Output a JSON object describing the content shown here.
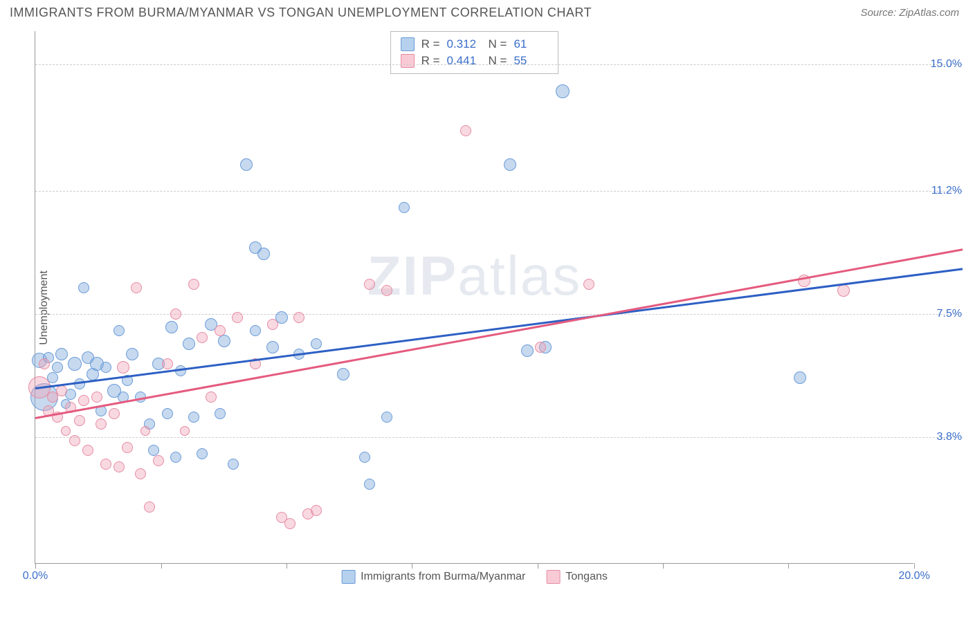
{
  "title": "IMMIGRANTS FROM BURMA/MYANMAR VS TONGAN UNEMPLOYMENT CORRELATION CHART",
  "source": "Source: ZipAtlas.com",
  "watermark": {
    "bold": "ZIP",
    "light": "atlas"
  },
  "y_axis_label": "Unemployment",
  "chart": {
    "type": "scatter",
    "xlim": [
      0,
      20
    ],
    "ylim": [
      0,
      16
    ],
    "x_ticks": [
      0,
      2.86,
      5.71,
      8.57,
      11.43,
      14.29,
      17.14,
      20
    ],
    "x_tick_labels": {
      "0": "0.0%",
      "20": "20.0%"
    },
    "y_ticks": [
      3.8,
      7.5,
      11.2,
      15.0
    ],
    "y_tick_labels": [
      "3.8%",
      "7.5%",
      "11.2%",
      "15.0%"
    ],
    "grid_color": "#cccccc",
    "axis_color": "#999999",
    "background_color": "#ffffff",
    "series": [
      {
        "name": "Immigrants from Burma/Myanmar",
        "short": "burma",
        "fill": "rgba(128,170,220,0.45)",
        "stroke": "#6a9bd8",
        "swatch_fill": "rgba(150,190,230,0.7)",
        "swatch_stroke": "#6a9bd8",
        "trend_color": "#2d5fc4",
        "r_value": "0.312",
        "n_value": "61",
        "trend": {
          "x1": 0,
          "y1": 5.3,
          "x2": 20,
          "y2": 8.7
        },
        "points": [
          {
            "x": 0.1,
            "y": 6.1,
            "r": 11
          },
          {
            "x": 0.2,
            "y": 5.0,
            "r": 20
          },
          {
            "x": 0.3,
            "y": 6.2,
            "r": 8
          },
          {
            "x": 0.4,
            "y": 5.6,
            "r": 8
          },
          {
            "x": 0.5,
            "y": 5.9,
            "r": 8
          },
          {
            "x": 0.6,
            "y": 6.3,
            "r": 9
          },
          {
            "x": 0.7,
            "y": 4.8,
            "r": 7
          },
          {
            "x": 0.8,
            "y": 5.1,
            "r": 8
          },
          {
            "x": 0.9,
            "y": 6.0,
            "r": 10
          },
          {
            "x": 1.0,
            "y": 5.4,
            "r": 8
          },
          {
            "x": 1.1,
            "y": 8.3,
            "r": 8
          },
          {
            "x": 1.2,
            "y": 6.2,
            "r": 9
          },
          {
            "x": 1.3,
            "y": 5.7,
            "r": 9
          },
          {
            "x": 1.4,
            "y": 6.0,
            "r": 10
          },
          {
            "x": 1.5,
            "y": 4.6,
            "r": 8
          },
          {
            "x": 1.6,
            "y": 5.9,
            "r": 8
          },
          {
            "x": 1.8,
            "y": 5.2,
            "r": 10
          },
          {
            "x": 1.9,
            "y": 7.0,
            "r": 8
          },
          {
            "x": 2.0,
            "y": 5.0,
            "r": 8
          },
          {
            "x": 2.1,
            "y": 5.5,
            "r": 8
          },
          {
            "x": 2.2,
            "y": 6.3,
            "r": 9
          },
          {
            "x": 2.4,
            "y": 5.0,
            "r": 8
          },
          {
            "x": 2.6,
            "y": 4.2,
            "r": 8
          },
          {
            "x": 2.7,
            "y": 3.4,
            "r": 8
          },
          {
            "x": 2.8,
            "y": 6.0,
            "r": 9
          },
          {
            "x": 3.0,
            "y": 4.5,
            "r": 8
          },
          {
            "x": 3.1,
            "y": 7.1,
            "r": 9
          },
          {
            "x": 3.2,
            "y": 3.2,
            "r": 8
          },
          {
            "x": 3.3,
            "y": 5.8,
            "r": 8
          },
          {
            "x": 3.5,
            "y": 6.6,
            "r": 9
          },
          {
            "x": 3.6,
            "y": 4.4,
            "r": 8
          },
          {
            "x": 3.8,
            "y": 3.3,
            "r": 8
          },
          {
            "x": 4.0,
            "y": 7.2,
            "r": 9
          },
          {
            "x": 4.2,
            "y": 4.5,
            "r": 8
          },
          {
            "x": 4.3,
            "y": 6.7,
            "r": 9
          },
          {
            "x": 4.5,
            "y": 3.0,
            "r": 8
          },
          {
            "x": 4.8,
            "y": 12.0,
            "r": 9
          },
          {
            "x": 5.0,
            "y": 7.0,
            "r": 8
          },
          {
            "x": 5.0,
            "y": 9.5,
            "r": 9
          },
          {
            "x": 5.2,
            "y": 9.3,
            "r": 9
          },
          {
            "x": 5.4,
            "y": 6.5,
            "r": 9
          },
          {
            "x": 5.6,
            "y": 7.4,
            "r": 9
          },
          {
            "x": 6.0,
            "y": 6.3,
            "r": 8
          },
          {
            "x": 6.4,
            "y": 6.6,
            "r": 8
          },
          {
            "x": 7.0,
            "y": 5.7,
            "r": 9
          },
          {
            "x": 7.5,
            "y": 3.2,
            "r": 8
          },
          {
            "x": 7.6,
            "y": 2.4,
            "r": 8
          },
          {
            "x": 8.0,
            "y": 4.4,
            "r": 8
          },
          {
            "x": 8.4,
            "y": 10.7,
            "r": 8
          },
          {
            "x": 10.8,
            "y": 12.0,
            "r": 9
          },
          {
            "x": 11.2,
            "y": 6.4,
            "r": 9
          },
          {
            "x": 11.6,
            "y": 6.5,
            "r": 9
          },
          {
            "x": 12.0,
            "y": 14.2,
            "r": 10
          },
          {
            "x": 17.4,
            "y": 5.6,
            "r": 9
          }
        ]
      },
      {
        "name": "Tongans",
        "short": "tongan",
        "fill": "rgba(240,160,180,0.40)",
        "stroke": "#e58ba3",
        "swatch_fill": "rgba(245,180,195,0.7)",
        "swatch_stroke": "#e58ba3",
        "trend_color": "#e55a7e",
        "r_value": "0.441",
        "n_value": "55",
        "trend": {
          "x1": 0,
          "y1": 4.4,
          "x2": 20,
          "y2": 9.2
        },
        "points": [
          {
            "x": 0.1,
            "y": 5.3,
            "r": 16
          },
          {
            "x": 0.2,
            "y": 6.0,
            "r": 8
          },
          {
            "x": 0.3,
            "y": 4.6,
            "r": 8
          },
          {
            "x": 0.4,
            "y": 5.0,
            "r": 8
          },
          {
            "x": 0.5,
            "y": 4.4,
            "r": 8
          },
          {
            "x": 0.6,
            "y": 5.2,
            "r": 8
          },
          {
            "x": 0.7,
            "y": 4.0,
            "r": 7
          },
          {
            "x": 0.8,
            "y": 4.7,
            "r": 8
          },
          {
            "x": 0.9,
            "y": 3.7,
            "r": 8
          },
          {
            "x": 1.0,
            "y": 4.3,
            "r": 8
          },
          {
            "x": 1.1,
            "y": 4.9,
            "r": 8
          },
          {
            "x": 1.2,
            "y": 3.4,
            "r": 8
          },
          {
            "x": 1.4,
            "y": 5.0,
            "r": 8
          },
          {
            "x": 1.5,
            "y": 4.2,
            "r": 8
          },
          {
            "x": 1.6,
            "y": 3.0,
            "r": 8
          },
          {
            "x": 1.8,
            "y": 4.5,
            "r": 8
          },
          {
            "x": 1.9,
            "y": 2.9,
            "r": 8
          },
          {
            "x": 2.0,
            "y": 5.9,
            "r": 9
          },
          {
            "x": 2.1,
            "y": 3.5,
            "r": 8
          },
          {
            "x": 2.3,
            "y": 8.3,
            "r": 8
          },
          {
            "x": 2.4,
            "y": 2.7,
            "r": 8
          },
          {
            "x": 2.5,
            "y": 4.0,
            "r": 7
          },
          {
            "x": 2.6,
            "y": 1.7,
            "r": 8
          },
          {
            "x": 2.8,
            "y": 3.1,
            "r": 8
          },
          {
            "x": 3.0,
            "y": 6.0,
            "r": 8
          },
          {
            "x": 3.2,
            "y": 7.5,
            "r": 8
          },
          {
            "x": 3.4,
            "y": 4.0,
            "r": 7
          },
          {
            "x": 3.6,
            "y": 8.4,
            "r": 8
          },
          {
            "x": 3.8,
            "y": 6.8,
            "r": 8
          },
          {
            "x": 4.0,
            "y": 5.0,
            "r": 8
          },
          {
            "x": 4.2,
            "y": 7.0,
            "r": 8
          },
          {
            "x": 4.6,
            "y": 7.4,
            "r": 8
          },
          {
            "x": 5.0,
            "y": 6.0,
            "r": 8
          },
          {
            "x": 5.4,
            "y": 7.2,
            "r": 8
          },
          {
            "x": 5.6,
            "y": 1.4,
            "r": 8
          },
          {
            "x": 5.8,
            "y": 1.2,
            "r": 8
          },
          {
            "x": 6.0,
            "y": 7.4,
            "r": 8
          },
          {
            "x": 6.2,
            "y": 1.5,
            "r": 8
          },
          {
            "x": 6.4,
            "y": 1.6,
            "r": 8
          },
          {
            "x": 7.6,
            "y": 8.4,
            "r": 8
          },
          {
            "x": 8.0,
            "y": 8.2,
            "r": 8
          },
          {
            "x": 9.8,
            "y": 13.0,
            "r": 8
          },
          {
            "x": 11.5,
            "y": 6.5,
            "r": 8
          },
          {
            "x": 12.6,
            "y": 8.4,
            "r": 8
          },
          {
            "x": 17.5,
            "y": 8.5,
            "r": 9
          },
          {
            "x": 18.4,
            "y": 8.2,
            "r": 9
          }
        ]
      }
    ]
  },
  "legend_top": {
    "r_label": "R =",
    "n_label": "N ="
  },
  "legend_bottom": [
    {
      "series": 0
    },
    {
      "series": 1
    }
  ]
}
